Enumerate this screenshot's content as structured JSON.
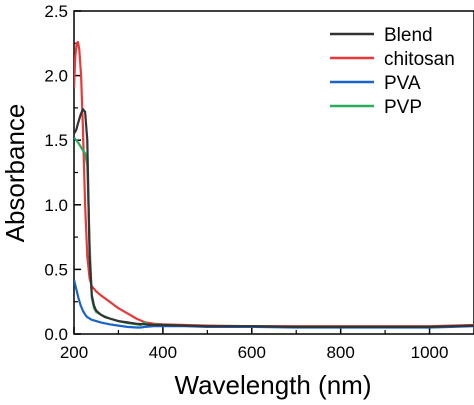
{
  "chart_data": {
    "type": "line",
    "xlabel": "Wavelength (nm)",
    "ylabel": "Absorbance",
    "xlim": [
      200,
      1100
    ],
    "ylim": [
      0,
      2.5
    ],
    "xticks": [
      200,
      400,
      600,
      800,
      1000
    ],
    "xtick_labels": [
      "200",
      "400",
      "600",
      "800",
      "1000"
    ],
    "yticks": [
      0,
      0.5,
      1.0,
      1.5,
      2.0,
      2.5
    ],
    "ytick_labels": [
      "0.0",
      "0.5",
      "1.0",
      "1.5",
      "2.0",
      "2.5"
    ],
    "grid": false,
    "legend_position": "top-right",
    "series": [
      {
        "name": "Blend",
        "color": "#333333",
        "x": [
          200,
          205,
          210,
          215,
          220,
          225,
          230,
          235,
          240,
          245,
          250,
          260,
          270,
          280,
          300,
          320,
          340,
          360,
          380,
          400,
          450,
          500,
          600,
          700,
          800,
          900,
          1000,
          1050,
          1100
        ],
        "y": [
          1.55,
          1.58,
          1.64,
          1.7,
          1.74,
          1.72,
          1.5,
          0.6,
          0.3,
          0.22,
          0.18,
          0.15,
          0.13,
          0.12,
          0.1,
          0.09,
          0.08,
          0.075,
          0.07,
          0.07,
          0.065,
          0.06,
          0.06,
          0.055,
          0.055,
          0.055,
          0.055,
          0.06,
          0.065
        ]
      },
      {
        "name": "chitosan",
        "color": "#e8393a",
        "x": [
          200,
          203,
          206,
          209,
          212,
          216,
          220,
          225,
          230,
          235,
          240,
          250,
          260,
          280,
          300,
          320,
          340,
          360,
          380,
          400,
          450,
          500,
          600,
          700,
          800,
          900,
          1000,
          1050,
          1100
        ],
        "y": [
          1.9,
          2.15,
          2.25,
          2.26,
          2.2,
          2.0,
          1.6,
          1.0,
          0.6,
          0.43,
          0.37,
          0.33,
          0.3,
          0.25,
          0.2,
          0.16,
          0.12,
          0.09,
          0.08,
          0.075,
          0.07,
          0.065,
          0.06,
          0.06,
          0.06,
          0.06,
          0.06,
          0.065,
          0.07
        ]
      },
      {
        "name": "PVA",
        "color": "#1a64c8",
        "x": [
          200,
          205,
          210,
          215,
          220,
          225,
          230,
          240,
          250,
          260,
          280,
          300,
          320,
          340,
          350,
          360,
          380,
          400,
          450,
          500,
          600,
          700,
          800,
          900,
          1000,
          1050,
          1100
        ],
        "y": [
          0.42,
          0.35,
          0.28,
          0.22,
          0.18,
          0.15,
          0.13,
          0.11,
          0.1,
          0.09,
          0.075,
          0.065,
          0.055,
          0.05,
          0.05,
          0.055,
          0.06,
          0.06,
          0.06,
          0.055,
          0.055,
          0.05,
          0.05,
          0.05,
          0.05,
          0.055,
          0.06
        ]
      },
      {
        "name": "PVP",
        "color": "#2bab5e",
        "x": [
          200,
          205,
          210,
          215,
          220,
          225,
          230,
          235,
          240,
          245,
          250,
          260,
          280,
          300,
          320,
          340,
          350,
          360,
          370,
          380,
          400,
          450,
          500,
          600,
          700,
          800,
          900,
          1000,
          1050,
          1100
        ],
        "y": [
          1.52,
          1.5,
          1.48,
          1.45,
          1.42,
          1.4,
          1.3,
          0.7,
          0.28,
          0.2,
          0.17,
          0.15,
          0.12,
          0.1,
          0.085,
          0.075,
          0.07,
          0.09,
          0.06,
          0.075,
          0.07,
          0.065,
          0.06,
          0.06,
          0.055,
          0.055,
          0.055,
          0.055,
          0.06,
          0.065
        ]
      }
    ]
  }
}
